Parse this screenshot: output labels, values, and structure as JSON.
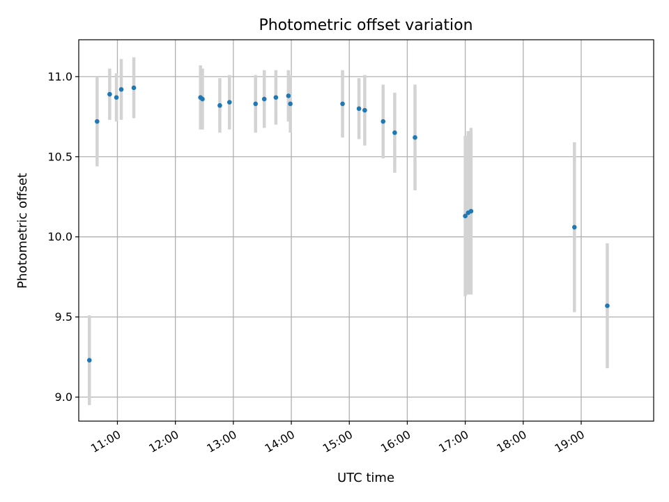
{
  "chart_data": {
    "type": "scatter",
    "title": "Photometric offset variation",
    "xlabel": "UTC time",
    "ylabel": "Photometric offset",
    "xlim": [
      "10:20",
      "20:15"
    ],
    "ylim": [
      8.85,
      11.23
    ],
    "x_ticks": [
      "11:00",
      "12:00",
      "13:00",
      "14:00",
      "15:00",
      "16:00",
      "17:00",
      "18:00",
      "19:00"
    ],
    "y_ticks": [
      9.0,
      9.5,
      10.0,
      10.5,
      11.0
    ],
    "y_tick_labels": [
      "9.0",
      "9.5",
      "10.0",
      "10.5",
      "11.0"
    ],
    "grid": true,
    "colors": {
      "point": "#1f77b4",
      "error_bar": "#d3d3d3"
    },
    "points": [
      {
        "x": "10:31",
        "y": 9.23,
        "yerr": 0.28
      },
      {
        "x": "10:39",
        "y": 10.72,
        "yerr": 0.28
      },
      {
        "x": "10:52",
        "y": 10.89,
        "yerr": 0.16
      },
      {
        "x": "10:59",
        "y": 10.87,
        "yerr": 0.15
      },
      {
        "x": "11:04",
        "y": 10.92,
        "yerr": 0.19
      },
      {
        "x": "11:17",
        "y": 10.93,
        "yerr": 0.19
      },
      {
        "x": "12:26",
        "y": 10.87,
        "yerr": 0.2
      },
      {
        "x": "12:28",
        "y": 10.86,
        "yerr": 0.19
      },
      {
        "x": "12:46",
        "y": 10.82,
        "yerr": 0.17
      },
      {
        "x": "12:56",
        "y": 10.84,
        "yerr": 0.17
      },
      {
        "x": "13:23",
        "y": 10.83,
        "yerr": 0.18
      },
      {
        "x": "13:32",
        "y": 10.86,
        "yerr": 0.18
      },
      {
        "x": "13:44",
        "y": 10.87,
        "yerr": 0.17
      },
      {
        "x": "13:57",
        "y": 10.88,
        "yerr": 0.16
      },
      {
        "x": "13:59",
        "y": 10.83,
        "yerr": 0.18
      },
      {
        "x": "14:53",
        "y": 10.83,
        "yerr": 0.21
      },
      {
        "x": "15:10",
        "y": 10.8,
        "yerr": 0.19
      },
      {
        "x": "15:16",
        "y": 10.79,
        "yerr": 0.22
      },
      {
        "x": "15:35",
        "y": 10.72,
        "yerr": 0.23
      },
      {
        "x": "15:47",
        "y": 10.65,
        "yerr": 0.25
      },
      {
        "x": "16:08",
        "y": 10.62,
        "yerr": 0.33
      },
      {
        "x": "17:00",
        "y": 10.13,
        "yerr": 0.5
      },
      {
        "x": "17:03",
        "y": 10.15,
        "yerr": 0.51
      },
      {
        "x": "17:06",
        "y": 10.16,
        "yerr": 0.52
      },
      {
        "x": "18:53",
        "y": 10.06,
        "yerr": 0.53
      },
      {
        "x": "19:27",
        "y": 9.57,
        "yerr": 0.39
      }
    ]
  }
}
